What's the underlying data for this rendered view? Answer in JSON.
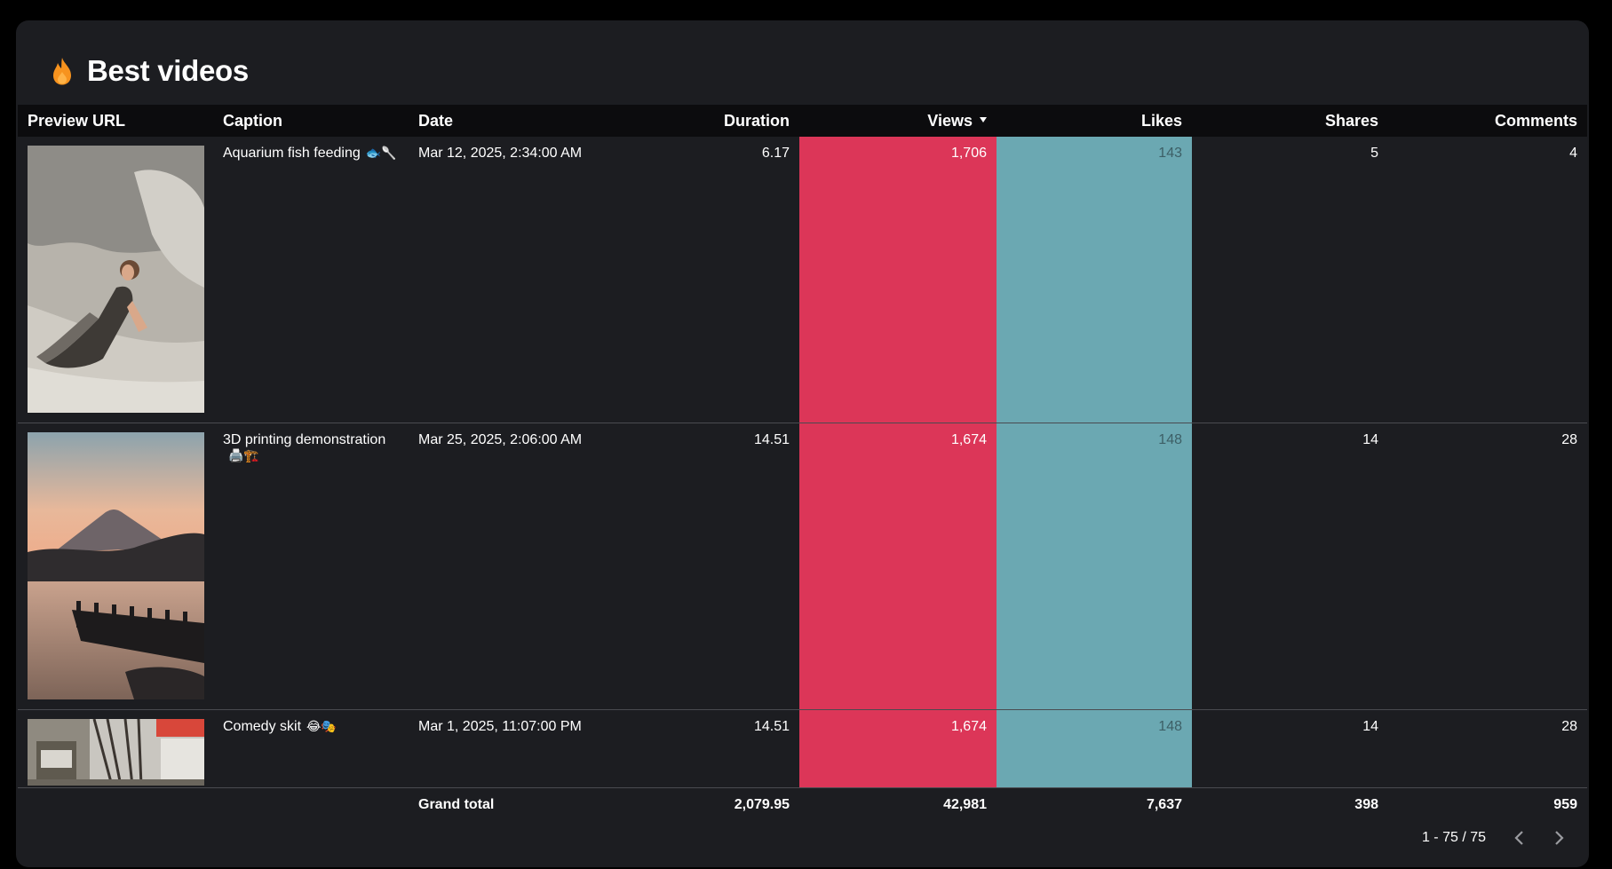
{
  "header": {
    "title": "Best videos",
    "icon": "flame-icon",
    "icon_color": "#f7931e"
  },
  "columns": {
    "preview": "Preview URL",
    "caption": "Caption",
    "date": "Date",
    "duration": "Duration",
    "views": "Views",
    "likes": "Likes",
    "shares": "Shares",
    "comments": "Comments"
  },
  "sort": {
    "column": "Views",
    "direction": "descending"
  },
  "rows": [
    {
      "thumbnail": "woman reclining on rocks",
      "caption": "Aquarium fish feeding",
      "caption_emojis": "🐟🥄",
      "date": "Mar 12, 2025, 2:34:00 AM",
      "duration": "6.17",
      "views": "1,706",
      "likes": "143",
      "shares": "5",
      "comments": "4"
    },
    {
      "thumbnail": "mountain over lake at sunset",
      "caption": "3D printing demonstration",
      "caption_emojis": "🖨️🏗️",
      "date": "Mar 25, 2025, 2:06:00 AM",
      "duration": "14.51",
      "views": "1,674",
      "likes": "148",
      "shares": "14",
      "comments": "28"
    },
    {
      "thumbnail": "city street with kiosk",
      "caption": "Comedy skit",
      "caption_emojis": "😂🎭",
      "date": "Mar 1, 2025, 11:07:00 PM",
      "duration": "14.51",
      "views": "1,674",
      "likes": "148",
      "shares": "14",
      "comments": "28"
    }
  ],
  "totals": {
    "label": "Grand total",
    "duration": "2,079.95",
    "views": "42,981",
    "likes": "7,637",
    "shares": "398",
    "comments": "959"
  },
  "pagination": {
    "range": "1 - 75 / 75"
  },
  "colors": {
    "panel_bg": "#1c1d21",
    "views_highlight": "#dc3658",
    "likes_highlight": "#6ba8b2"
  }
}
